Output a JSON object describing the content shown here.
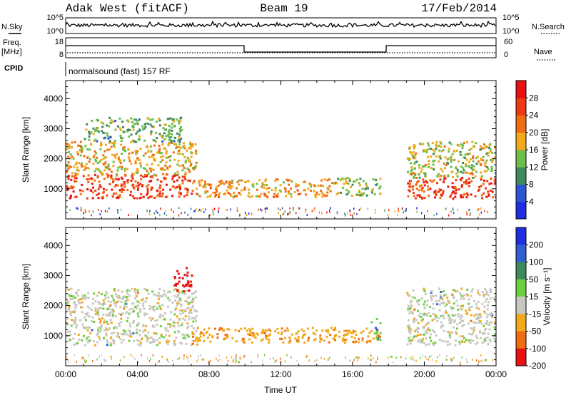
{
  "header": {
    "station": "Adak West (fitACF)",
    "beam": "Beam 19",
    "date": "17/Feb/2014"
  },
  "meta_panels": {
    "nsky": {
      "label": "N.Sky",
      "ticks": [
        "10^5",
        "10^0"
      ]
    },
    "nsearch": {
      "label": "N.Search",
      "ticks": [
        "10^5",
        "10^0"
      ]
    },
    "freq": {
      "label_line1": "Freq.",
      "label_line2": "[MHz]",
      "ticks": [
        "18",
        "8"
      ]
    },
    "nave": {
      "label": "Nave",
      "ticks": [
        "60",
        "0"
      ]
    },
    "cpid": {
      "label": "CPID",
      "value": "normalsound (fast) 157 RF"
    }
  },
  "colors": {
    "power_scale": [
      "#1f2ee0",
      "#2a56d6",
      "#3f8a5c",
      "#6cbf4a",
      "#f2a91a",
      "#f06e12",
      "#ee3a12",
      "#e81010"
    ],
    "velocity_scale": [
      "#1f2ee0",
      "#2f5fd0",
      "#3f8a5c",
      "#6cd040",
      "#c8c8c0",
      "#f2a91a",
      "#f06e12",
      "#e81010"
    ],
    "ground_gray": "#c8c8c0"
  },
  "chart_data": [
    {
      "type": "heatmap",
      "title": "",
      "quantity": "Power",
      "xlabel": "Time UT",
      "ylabel": "Slant Range [km]",
      "xlim": [
        "00:00",
        "24:00"
      ],
      "ylim": [
        0,
        4600
      ],
      "x_ticks": [
        "00:00",
        "04:00",
        "08:00",
        "12:00",
        "16:00",
        "20:00",
        "00:00"
      ],
      "y_ticks": [
        1000,
        2000,
        3000,
        4000
      ],
      "colorbar": {
        "label": "Power [dB]",
        "ticks": [
          4,
          8,
          12,
          16,
          20,
          24,
          28
        ],
        "range": [
          0,
          32
        ]
      },
      "regions": [
        {
          "t_start": 0.0,
          "t_end": 7.0,
          "range_km": [
            700,
            1500
          ],
          "power_db": 26
        },
        {
          "t_start": 0.0,
          "t_end": 7.3,
          "range_km": [
            1500,
            2600
          ],
          "power_db": 18
        },
        {
          "t_start": 1.0,
          "t_end": 6.5,
          "range_km": [
            2600,
            3400
          ],
          "power_db": 12
        },
        {
          "t_start": 7.0,
          "t_end": 15.0,
          "range_km": [
            750,
            1350
          ],
          "power_db": 20
        },
        {
          "t_start": 15.0,
          "t_end": 17.5,
          "range_km": [
            800,
            1400
          ],
          "power_db": 14
        },
        {
          "t_start": 19.0,
          "t_end": 24.0,
          "range_km": [
            700,
            1400
          ],
          "power_db": 26
        },
        {
          "t_start": 19.0,
          "t_end": 24.0,
          "range_km": [
            1400,
            2600
          ],
          "power_db": 16
        }
      ]
    },
    {
      "type": "heatmap",
      "title": "",
      "quantity": "Velocity",
      "xlabel": "Time UT",
      "ylabel": "Slant Range [km]",
      "xlim": [
        "00:00",
        "24:00"
      ],
      "ylim": [
        0,
        4600
      ],
      "x_ticks": [
        "00:00",
        "04:00",
        "08:00",
        "12:00",
        "16:00",
        "20:00",
        "00:00"
      ],
      "y_ticks": [
        1000,
        2000,
        3000,
        4000
      ],
      "colorbar": {
        "label": "Velocity [m s⁻¹]",
        "ticks": [
          200,
          100,
          50,
          15,
          -15,
          -50,
          -100,
          -200
        ]
      },
      "regions": [
        {
          "t_start": 0.0,
          "t_end": 7.3,
          "range_km": [
            700,
            2600
          ],
          "velocity": 0
        },
        {
          "t_start": 6.0,
          "t_end": 7.0,
          "range_km": [
            2500,
            3300
          ],
          "velocity": -150
        },
        {
          "t_start": 7.0,
          "t_end": 17.5,
          "range_km": [
            800,
            1300
          ],
          "velocity": -40
        },
        {
          "t_start": 17.0,
          "t_end": 17.5,
          "range_km": [
            900,
            1600
          ],
          "velocity": 40
        },
        {
          "t_start": 19.0,
          "t_end": 24.0,
          "range_km": [
            700,
            2600
          ],
          "velocity": 0
        }
      ]
    }
  ]
}
